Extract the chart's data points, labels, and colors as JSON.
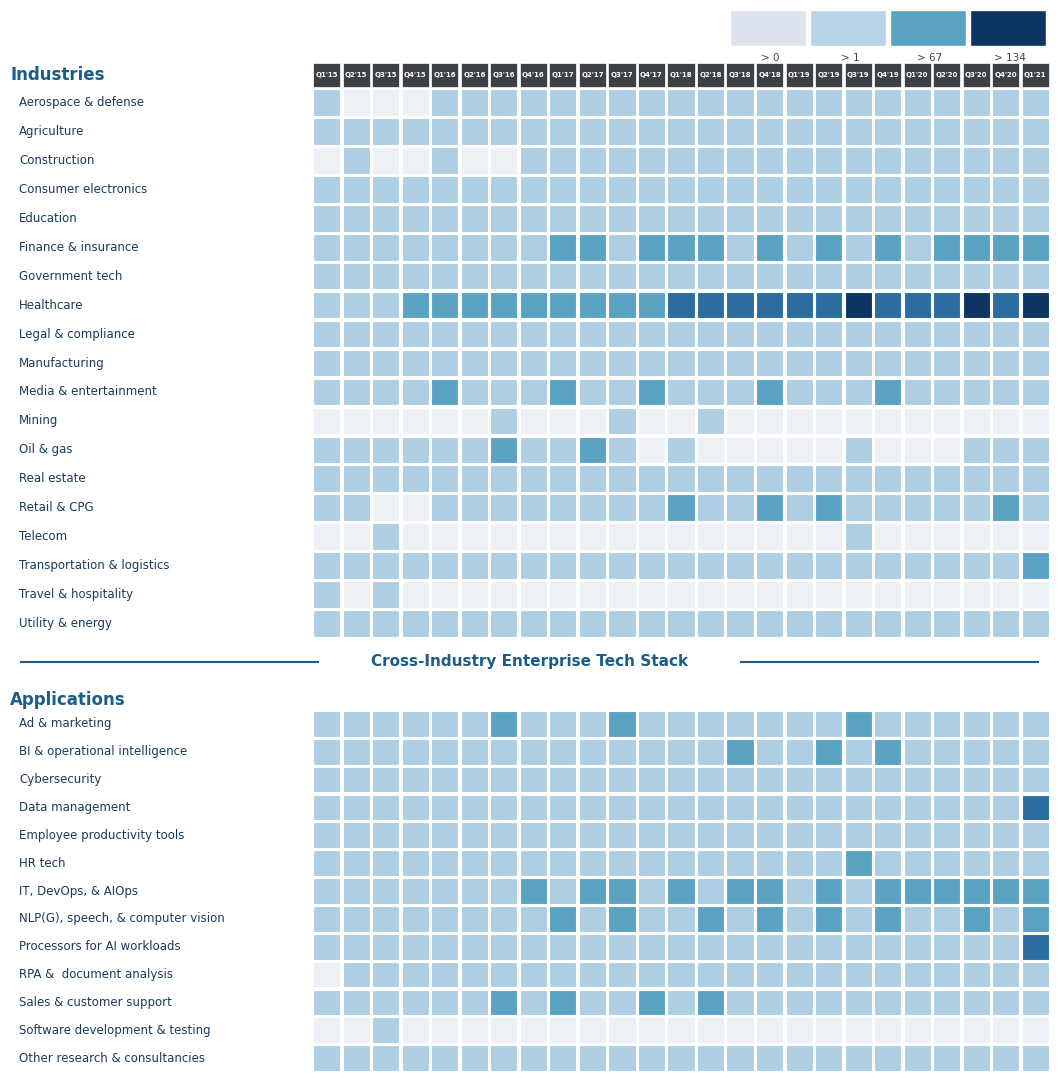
{
  "quarters": [
    "Q1'15",
    "Q2'15",
    "Q3'15",
    "Q4'15",
    "Q1'16",
    "Q2'16",
    "Q3'16",
    "Q4'16",
    "Q1'17",
    "Q2'17",
    "Q3'17",
    "Q4'17",
    "Q1'18",
    "Q2'18",
    "Q3'18",
    "Q4'18",
    "Q1'19",
    "Q2'19",
    "Q3'19",
    "Q4'19",
    "Q1'20",
    "Q2'20",
    "Q3'20",
    "Q4'20",
    "Q1'21"
  ],
  "industries": [
    "Aerospace & defense",
    "Agriculture",
    "Construction",
    "Consumer electronics",
    "Education",
    "Finance & insurance",
    "Government tech",
    "Healthcare",
    "Legal & compliance",
    "Manufacturing",
    "Media & entertainment",
    "Mining",
    "Oil & gas",
    "Real estate",
    "Retail & CPG",
    "Telecom",
    "Transportation & logistics",
    "Travel & hospitality",
    "Utility & energy"
  ],
  "applications": [
    "Ad & marketing",
    "BI & operational intelligence",
    "Cybersecurity",
    "Data management",
    "Employee productivity tools",
    "HR tech",
    "IT, DevOps, & AIOps",
    "NLP(G), speech, & computer vision",
    "Processors for AI workloads",
    "RPA &  document analysis",
    "Sales & customer support",
    "Software development & testing",
    "Other research & consultancies"
  ],
  "industry_data": [
    [
      1,
      0,
      0,
      0,
      1,
      1,
      1,
      1,
      1,
      1,
      1,
      1,
      1,
      1,
      1,
      1,
      1,
      1,
      1,
      1,
      1,
      1,
      1,
      1,
      1
    ],
    [
      1,
      1,
      1,
      1,
      1,
      1,
      1,
      1,
      1,
      1,
      1,
      1,
      1,
      1,
      1,
      1,
      1,
      1,
      1,
      1,
      1,
      1,
      1,
      1,
      1
    ],
    [
      0,
      1,
      0,
      0,
      1,
      0,
      0,
      1,
      1,
      1,
      1,
      1,
      1,
      1,
      1,
      1,
      1,
      1,
      1,
      1,
      1,
      1,
      1,
      1,
      1
    ],
    [
      1,
      1,
      1,
      1,
      1,
      1,
      1,
      1,
      1,
      1,
      1,
      1,
      1,
      1,
      1,
      1,
      1,
      1,
      1,
      1,
      1,
      1,
      1,
      1,
      1
    ],
    [
      1,
      1,
      1,
      1,
      1,
      1,
      1,
      1,
      1,
      1,
      1,
      1,
      1,
      1,
      1,
      1,
      1,
      1,
      1,
      1,
      1,
      1,
      1,
      1,
      1
    ],
    [
      1,
      1,
      1,
      1,
      1,
      1,
      1,
      1,
      2,
      2,
      1,
      2,
      2,
      2,
      1,
      2,
      1,
      2,
      1,
      2,
      1,
      2,
      2,
      2,
      2
    ],
    [
      1,
      1,
      1,
      1,
      1,
      1,
      1,
      1,
      1,
      1,
      1,
      1,
      1,
      1,
      1,
      1,
      1,
      1,
      1,
      1,
      1,
      1,
      1,
      1,
      1
    ],
    [
      1,
      1,
      1,
      2,
      2,
      2,
      2,
      2,
      2,
      2,
      2,
      2,
      3,
      3,
      3,
      3,
      3,
      3,
      4,
      3,
      3,
      3,
      4,
      3,
      4
    ],
    [
      1,
      1,
      1,
      1,
      1,
      1,
      1,
      1,
      1,
      1,
      1,
      1,
      1,
      1,
      1,
      1,
      1,
      1,
      1,
      1,
      1,
      1,
      1,
      1,
      1
    ],
    [
      1,
      1,
      1,
      1,
      1,
      1,
      1,
      1,
      1,
      1,
      1,
      1,
      1,
      1,
      1,
      1,
      1,
      1,
      1,
      1,
      1,
      1,
      1,
      1,
      1
    ],
    [
      1,
      1,
      1,
      1,
      2,
      1,
      1,
      1,
      2,
      1,
      1,
      2,
      1,
      1,
      1,
      2,
      1,
      1,
      1,
      2,
      1,
      1,
      1,
      1,
      1
    ],
    [
      0,
      0,
      0,
      0,
      0,
      0,
      1,
      0,
      0,
      0,
      1,
      0,
      0,
      1,
      0,
      0,
      0,
      0,
      0,
      0,
      0,
      0,
      0,
      0,
      0
    ],
    [
      1,
      1,
      1,
      1,
      1,
      1,
      2,
      1,
      1,
      2,
      1,
      0,
      1,
      0,
      0,
      0,
      0,
      0,
      1,
      0,
      0,
      0,
      1,
      1,
      1
    ],
    [
      1,
      1,
      1,
      1,
      1,
      1,
      1,
      1,
      1,
      1,
      1,
      1,
      1,
      1,
      1,
      1,
      1,
      1,
      1,
      1,
      1,
      1,
      1,
      1,
      1
    ],
    [
      1,
      1,
      0,
      0,
      1,
      1,
      1,
      1,
      1,
      1,
      1,
      1,
      2,
      1,
      1,
      2,
      1,
      2,
      1,
      1,
      1,
      1,
      1,
      2,
      1
    ],
    [
      0,
      0,
      1,
      0,
      0,
      0,
      0,
      0,
      0,
      0,
      0,
      0,
      0,
      0,
      0,
      0,
      0,
      0,
      1,
      0,
      0,
      0,
      0,
      0,
      0
    ],
    [
      1,
      1,
      1,
      1,
      1,
      1,
      1,
      1,
      1,
      1,
      1,
      1,
      1,
      1,
      1,
      1,
      1,
      1,
      1,
      1,
      1,
      1,
      1,
      1,
      2
    ],
    [
      1,
      0,
      1,
      0,
      0,
      0,
      0,
      0,
      0,
      0,
      0,
      0,
      0,
      0,
      0,
      0,
      0,
      0,
      0,
      0,
      0,
      0,
      0,
      0,
      0
    ],
    [
      1,
      1,
      1,
      1,
      1,
      1,
      1,
      1,
      1,
      1,
      1,
      1,
      1,
      1,
      1,
      1,
      1,
      1,
      1,
      1,
      1,
      1,
      1,
      1,
      1
    ]
  ],
  "application_data": [
    [
      1,
      1,
      1,
      1,
      1,
      1,
      2,
      1,
      1,
      1,
      2,
      1,
      1,
      1,
      1,
      1,
      1,
      1,
      2,
      1,
      1,
      1,
      1,
      1,
      1
    ],
    [
      1,
      1,
      1,
      1,
      1,
      1,
      1,
      1,
      1,
      1,
      1,
      1,
      1,
      1,
      2,
      1,
      1,
      2,
      1,
      2,
      1,
      1,
      1,
      1,
      1
    ],
    [
      1,
      1,
      1,
      1,
      1,
      1,
      1,
      1,
      1,
      1,
      1,
      1,
      1,
      1,
      1,
      1,
      1,
      1,
      1,
      1,
      1,
      1,
      1,
      1,
      1
    ],
    [
      1,
      1,
      1,
      1,
      1,
      1,
      1,
      1,
      1,
      1,
      1,
      1,
      1,
      1,
      1,
      1,
      1,
      1,
      1,
      1,
      1,
      1,
      1,
      1,
      3
    ],
    [
      1,
      1,
      1,
      1,
      1,
      1,
      1,
      1,
      1,
      1,
      1,
      1,
      1,
      1,
      1,
      1,
      1,
      1,
      1,
      1,
      1,
      1,
      1,
      1,
      1
    ],
    [
      1,
      1,
      1,
      1,
      1,
      1,
      1,
      1,
      1,
      1,
      1,
      1,
      1,
      1,
      1,
      1,
      1,
      1,
      2,
      1,
      1,
      1,
      1,
      1,
      1
    ],
    [
      1,
      1,
      1,
      1,
      1,
      1,
      1,
      2,
      1,
      2,
      2,
      1,
      2,
      1,
      2,
      2,
      1,
      2,
      1,
      2,
      2,
      2,
      2,
      2,
      2
    ],
    [
      1,
      1,
      1,
      1,
      1,
      1,
      1,
      1,
      2,
      1,
      2,
      1,
      1,
      2,
      1,
      2,
      1,
      2,
      1,
      2,
      1,
      1,
      2,
      1,
      2
    ],
    [
      1,
      1,
      1,
      1,
      1,
      1,
      1,
      1,
      1,
      1,
      1,
      1,
      1,
      1,
      1,
      1,
      1,
      1,
      1,
      1,
      1,
      1,
      1,
      1,
      3
    ],
    [
      0,
      1,
      1,
      1,
      1,
      1,
      1,
      1,
      1,
      1,
      1,
      1,
      1,
      1,
      1,
      1,
      1,
      1,
      1,
      1,
      1,
      1,
      1,
      1,
      1
    ],
    [
      1,
      1,
      1,
      1,
      1,
      1,
      2,
      1,
      2,
      1,
      1,
      2,
      1,
      2,
      1,
      1,
      1,
      1,
      1,
      1,
      1,
      1,
      1,
      1,
      1
    ],
    [
      0,
      0,
      1,
      0,
      0,
      0,
      0,
      0,
      0,
      0,
      0,
      0,
      0,
      0,
      0,
      0,
      0,
      0,
      0,
      0,
      0,
      0,
      0,
      0,
      0
    ],
    [
      1,
      1,
      1,
      1,
      1,
      1,
      1,
      1,
      1,
      1,
      1,
      1,
      1,
      1,
      1,
      1,
      1,
      1,
      1,
      1,
      1,
      1,
      1,
      1,
      1
    ]
  ],
  "color_levels": {
    "0": "#edf0f5",
    "1": "#aecfe3",
    "2": "#5ba3c2",
    "3": "#2b6e9e",
    "4": "#0d3561"
  },
  "header_bg": "#3d4045",
  "header_text": "#ffffff",
  "title_color": "#1a5c8a",
  "section_label_color": "#1a5c8a",
  "row_label_color": "#1a3a5c",
  "divider_color": "#1a5c8a",
  "section_divider_text": "Cross-Industry Enterprise Tech Stack",
  "background_color": "#ffffff",
  "legend_labels": [
    "> 0",
    "> 1",
    "> 67",
    "> 134"
  ],
  "legend_colors": [
    "#dce3ec",
    "#b8d4e5",
    "#5ba3c2",
    "#0d3561"
  ],
  "ind_section_label": "Industries",
  "app_section_label": "Applications"
}
